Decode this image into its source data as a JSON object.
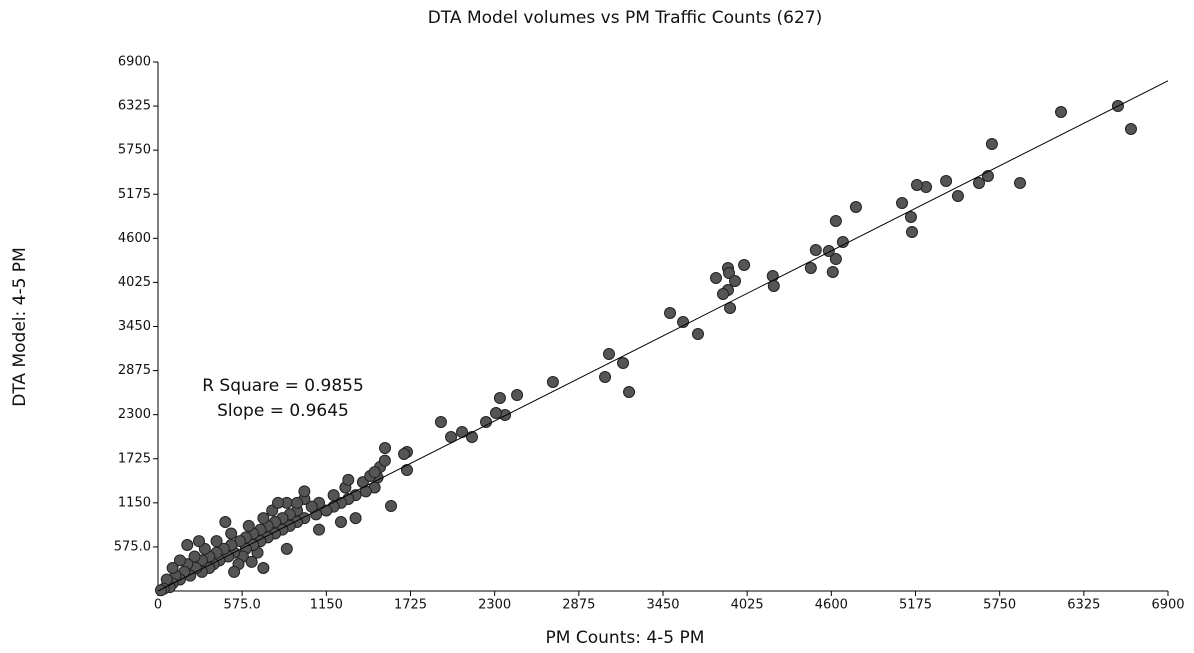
{
  "chart_data": {
    "type": "scatter",
    "title": "DTA Model volumes vs PM Traffic Counts (627)",
    "x_label": "PM Counts: 4-5 PM",
    "y_label": "DTA Model: 4-5 PM",
    "annotations": [
      "R Square = 0.9855",
      "Slope = 0.9645"
    ],
    "color": "#555555",
    "xlim": [
      0,
      6900
    ],
    "ylim": [
      0,
      6900
    ],
    "xticks": [
      0,
      {
        "value": 575,
        "label": "575.0"
      },
      1150,
      1725,
      2300,
      2875,
      3450,
      4025,
      4600,
      5175,
      5750,
      6325,
      6900
    ],
    "yticks": [
      {
        "value": 575,
        "label": "575.0"
      },
      1150,
      1725,
      2300,
      2875,
      3450,
      4025,
      4600,
      5175,
      5750,
      6325,
      6900
    ],
    "trendline": {
      "x": [
        0,
        6900
      ],
      "y": [
        0,
        6655
      ]
    },
    "x": [
      6169,
      6558,
      6647,
      5889,
      5697,
      5670,
      5609,
      5465,
      5384,
      5247,
      5185,
      5083,
      5144,
      5151,
      4768,
      4679,
      4631,
      4631,
      4583,
      4610,
      4494,
      4460,
      4200,
      4207,
      3894,
      4004,
      3901,
      3894,
      3942,
      3812,
      3860,
      3908,
      3498,
      3587,
      3689,
      3081,
      3054,
      3177,
      3218,
      2698,
      2453,
      2336,
      2371,
      2309,
      2241,
      2145,
      2077,
      2002,
      1933,
      1701,
      1681,
      1701,
      1551,
      1517,
      1592,
      1500,
      1480,
      1420,
      1400,
      1350,
      1300,
      1280,
      1250,
      1200,
      1200,
      1150,
      1100,
      1080,
      1050,
      1000,
      1000,
      950,
      950,
      900,
      900,
      880,
      850,
      850,
      800,
      800,
      780,
      750,
      750,
      720,
      700,
      700,
      680,
      650,
      650,
      620,
      600,
      600,
      580,
      560,
      550,
      520,
      500,
      500,
      480,
      460,
      450,
      420,
      400,
      400,
      380,
      350,
      350,
      320,
      300,
      300,
      280,
      260,
      250,
      220,
      200,
      200,
      180,
      150,
      150,
      120,
      100,
      100,
      80,
      60,
      40,
      20,
      1250,
      1350,
      1550,
      1450,
      1480,
      1300,
      1100,
      1000,
      950,
      880,
      820,
      720,
      640,
      520
    ],
    "y": [
      6248,
      6326,
      6026,
      5322,
      5830,
      5413,
      5322,
      5152,
      5348,
      5270,
      5296,
      5061,
      4878,
      4683,
      5009,
      4552,
      4826,
      4330,
      4435,
      4161,
      4448,
      4213,
      4109,
      3978,
      4213,
      4252,
      4148,
      3926,
      4043,
      4083,
      3874,
      3691,
      3626,
      3509,
      3352,
      3091,
      2791,
      2974,
      2596,
      2726,
      2556,
      2517,
      2296,
      2322,
      2204,
      2009,
      2074,
      2009,
      2204,
      1813,
      1787,
      1578,
      1865,
      1617,
      1109,
      1480,
      1350,
      1300,
      1420,
      1250,
      1200,
      1350,
      1150,
      1100,
      1250,
      1050,
      1150,
      1000,
      1100,
      950,
      1200,
      900,
      1050,
      850,
      1000,
      1150,
      800,
      950,
      750,
      900,
      1050,
      700,
      850,
      950,
      650,
      800,
      500,
      600,
      750,
      850,
      550,
      700,
      450,
      650,
      350,
      500,
      600,
      750,
      450,
      900,
      550,
      400,
      500,
      650,
      350,
      450,
      300,
      550,
      400,
      250,
      650,
      300,
      450,
      200,
      350,
      600,
      250,
      150,
      400,
      200,
      100,
      300,
      50,
      150,
      30,
      10,
      900,
      950,
      1700,
      1500,
      1550,
      1450,
      800,
      1300,
      1150,
      550,
      1150,
      300,
      380,
      250
    ]
  }
}
